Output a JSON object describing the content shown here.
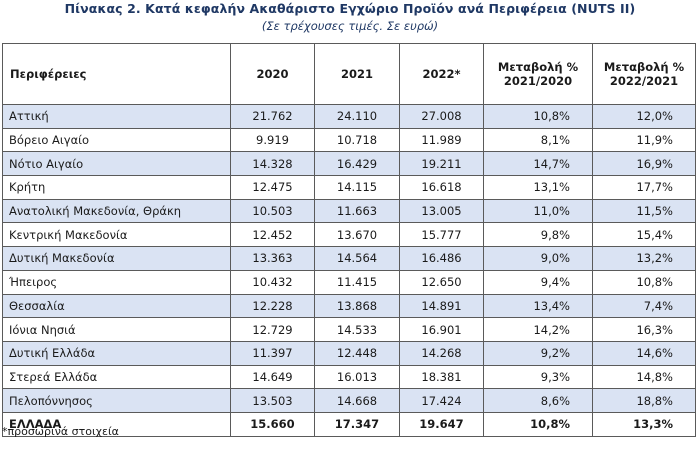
{
  "title": "Πίνακας 2. Κατά κεφαλήν Ακαθάριστο Εγχώριο Προϊόν ανά Περιφέρεια (NUTS II)",
  "subtitle": "(Σε τρέχουσες τιμές. Σε ευρώ)",
  "columns": {
    "region": "Περιφέρειες",
    "y2020": "2020",
    "y2021": "2021",
    "y2022": "2022*",
    "chg1_line1": "Μεταβολή %",
    "chg1_line2": "2021/2020",
    "chg2_line1": "Μεταβολή %",
    "chg2_line2": "2022/2021"
  },
  "rows": [
    {
      "region": "Αττική",
      "y2020": "21.762",
      "y2021": "24.110",
      "y2022": "27.008",
      "chg1": "10,8%",
      "chg2": "12,0%"
    },
    {
      "region": "Βόρειο Αιγαίο",
      "y2020": "9.919",
      "y2021": "10.718",
      "y2022": "11.989",
      "chg1": "8,1%",
      "chg2": "11,9%"
    },
    {
      "region": "Νότιο Αιγαίο",
      "y2020": "14.328",
      "y2021": "16.429",
      "y2022": "19.211",
      "chg1": "14,7%",
      "chg2": "16,9%"
    },
    {
      "region": "Κρήτη",
      "y2020": "12.475",
      "y2021": "14.115",
      "y2022": "16.618",
      "chg1": "13,1%",
      "chg2": "17,7%"
    },
    {
      "region": "Ανατολική Μακεδονία, Θράκη",
      "y2020": "10.503",
      "y2021": "11.663",
      "y2022": "13.005",
      "chg1": "11,0%",
      "chg2": "11,5%"
    },
    {
      "region": "Κεντρική Μακεδονία",
      "y2020": "12.452",
      "y2021": "13.670",
      "y2022": "15.777",
      "chg1": "9,8%",
      "chg2": "15,4%"
    },
    {
      "region": "Δυτική Μακεδονία",
      "y2020": "13.363",
      "y2021": "14.564",
      "y2022": "16.486",
      "chg1": "9,0%",
      "chg2": "13,2%"
    },
    {
      "region": "Ήπειρος",
      "y2020": "10.432",
      "y2021": "11.415",
      "y2022": "12.650",
      "chg1": "9,4%",
      "chg2": "10,8%"
    },
    {
      "region": "Θεσσαλία",
      "y2020": "12.228",
      "y2021": "13.868",
      "y2022": "14.891",
      "chg1": "13,4%",
      "chg2": "7,4%"
    },
    {
      "region": "Ιόνια Νησιά",
      "y2020": "12.729",
      "y2021": "14.533",
      "y2022": "16.901",
      "chg1": "14,2%",
      "chg2": "16,3%"
    },
    {
      "region": "Δυτική Ελλάδα",
      "y2020": "11.397",
      "y2021": "12.448",
      "y2022": "14.268",
      "chg1": "9,2%",
      "chg2": "14,6%"
    },
    {
      "region": "Στερεά Ελλάδα",
      "y2020": "14.649",
      "y2021": "16.013",
      "y2022": "18.381",
      "chg1": "9,3%",
      "chg2": "14,8%"
    },
    {
      "region": "Πελοπόννησος",
      "y2020": "13.503",
      "y2021": "14.668",
      "y2022": "17.424",
      "chg1": "8,6%",
      "chg2": "18,8%"
    }
  ],
  "total": {
    "region": "ΕΛΛΑΔΑ",
    "y2020": "15.660",
    "y2021": "17.347",
    "y2022": "19.647",
    "chg1": "10,8%",
    "chg2": "13,3%"
  },
  "footnote": "*προσωρινά στοιχεία",
  "colors": {
    "band": "#dae3f3",
    "title": "#1f3864",
    "border": "#5a5a5a"
  }
}
